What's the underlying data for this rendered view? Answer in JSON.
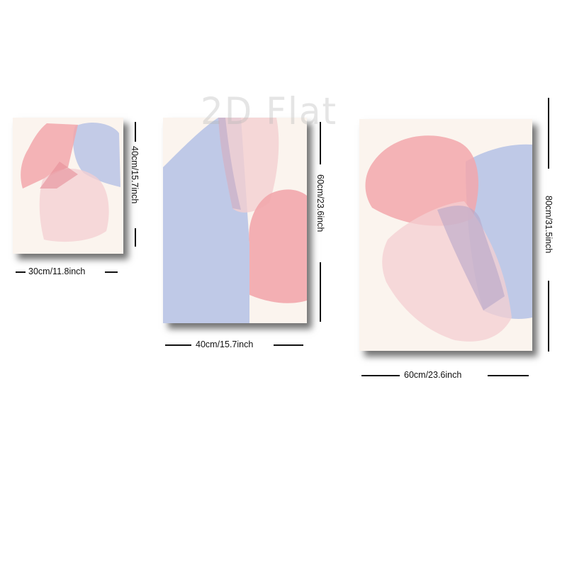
{
  "watermark": "2D Flat",
  "colors": {
    "canvas": "#fbf4ee",
    "pink": "#f2a7ac",
    "blush": "#f4cfd1",
    "lavender": "#bcc6e6",
    "mauve": "#b7a6c8"
  },
  "panels": [
    {
      "id": "small",
      "width_label": "30cm/11.8inch",
      "height_label": "40cm/15.7inch"
    },
    {
      "id": "medium",
      "width_label": "40cm/15.7inch",
      "height_label": "60cm/23.6inch"
    },
    {
      "id": "large",
      "width_label": "60cm/23.6inch",
      "height_label": "80cm/31.5inch"
    }
  ]
}
